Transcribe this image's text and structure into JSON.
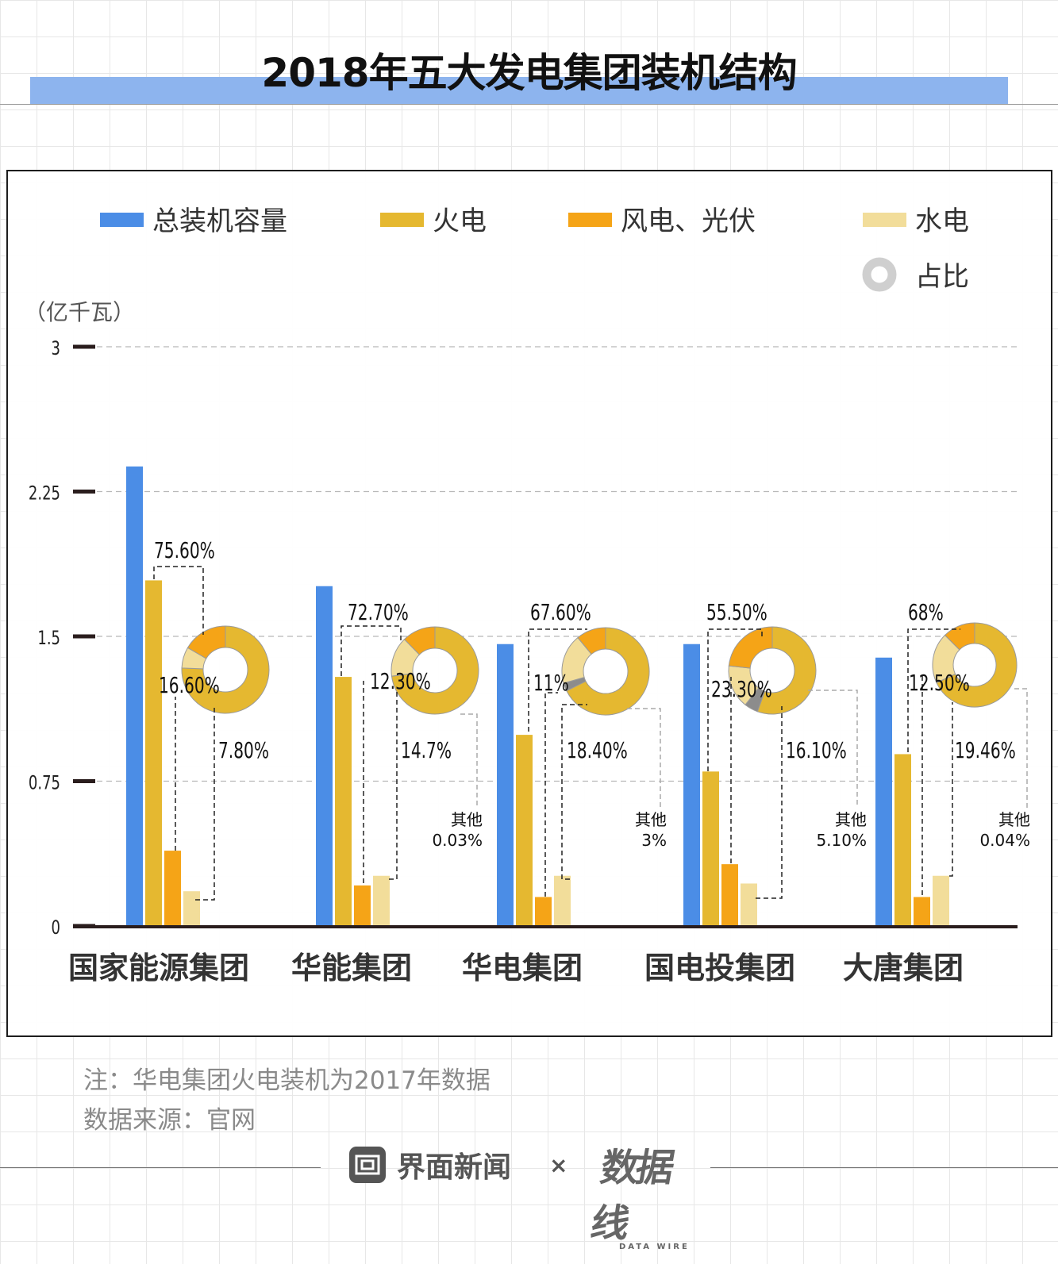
{
  "title": "2018年五大发电集团装机结构",
  "unit": "（亿千瓦）",
  "legend": {
    "total": "总装机容量",
    "thermal": "火电",
    "wind_solar": "风电、光伏",
    "hydro": "水电",
    "share": "占比"
  },
  "note": "注：华电集团火电装机为2017年数据",
  "source": "数据来源：官网",
  "footer": {
    "brand": "界面新闻",
    "times": "×",
    "partner": "数据线",
    "partner_sub": "DATA WIRE"
  },
  "colors": {
    "total": "#4b8de6",
    "thermal": "#e5b830",
    "wind_solar": "#f5a417",
    "hydro": "#f2dd9a",
    "other": "#8c8c8c",
    "title_band": "#8db4ee"
  },
  "chart_data": {
    "type": "bar",
    "ylim": [
      0,
      3
    ],
    "yticks": [
      0,
      0.75,
      1.5,
      2.25,
      3
    ],
    "ytick_labels": [
      "0",
      "0.75",
      "1.5",
      "2.25",
      "3"
    ],
    "categories": [
      "国家能源集团",
      "华能集团",
      "华电集团",
      "国电投集团",
      "大唐集团"
    ],
    "series": [
      {
        "name": "总装机容量",
        "values": [
          2.38,
          1.76,
          1.46,
          1.46,
          1.39
        ]
      },
      {
        "name": "火电",
        "values": [
          1.79,
          1.29,
          0.99,
          0.8,
          0.89
        ]
      },
      {
        "name": "风电、光伏",
        "values": [
          0.39,
          0.21,
          0.15,
          0.32,
          0.15
        ]
      },
      {
        "name": "水电",
        "values": [
          0.18,
          0.26,
          0.26,
          0.22,
          0.26
        ]
      }
    ],
    "shares": [
      {
        "thermal": 75.6,
        "wind_solar": 16.6,
        "hydro": 7.8,
        "other": 0,
        "labels": {
          "thermal": "75.60%",
          "wind_solar": "16.60%",
          "hydro": "7.80%"
        }
      },
      {
        "thermal": 72.7,
        "wind_solar": 12.3,
        "hydro": 14.7,
        "other": 0.03,
        "labels": {
          "thermal": "72.70%",
          "wind_solar": "12.30%",
          "hydro": "14.7%",
          "other_name": "其他",
          "other": "0.03%"
        }
      },
      {
        "thermal": 67.6,
        "wind_solar": 11,
        "hydro": 18.4,
        "other": 3,
        "labels": {
          "thermal": "67.60%",
          "wind_solar": "11%",
          "hydro": "18.40%",
          "other_name": "其他",
          "other": "3%"
        }
      },
      {
        "thermal": 55.5,
        "wind_solar": 23.3,
        "hydro": 16.1,
        "other": 5.1,
        "labels": {
          "thermal": "55.50%",
          "wind_solar": "23.30%",
          "hydro": "16.10%",
          "other_name": "其他",
          "other": "5.10%"
        }
      },
      {
        "thermal": 68,
        "wind_solar": 12.5,
        "hydro": 19.46,
        "other": 0.04,
        "labels": {
          "thermal": "68%",
          "wind_solar": "12.50%",
          "hydro": "19.46%",
          "other_name": "其他",
          "other": "0.04%"
        }
      }
    ],
    "grid": true,
    "legend_position": "top"
  }
}
